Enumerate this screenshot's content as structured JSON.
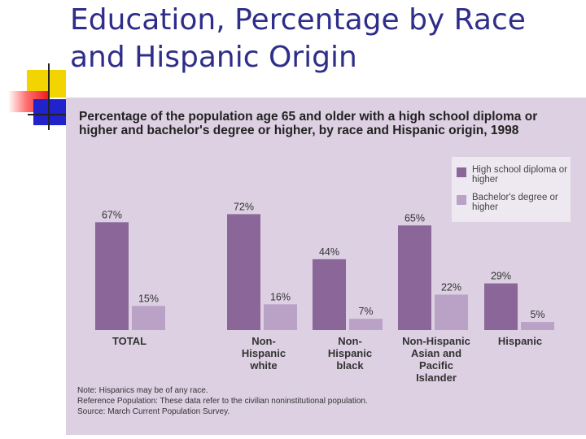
{
  "slide": {
    "title": "Education, Percentage by Race and Hispanic Origin"
  },
  "colors": {
    "title": "#2e2e8a",
    "panel_background": "#dcd0e2",
    "high_school": "#8a6699",
    "bachelors": "#b9a2c6"
  },
  "chart_data": {
    "type": "bar",
    "title": "Percentage of the population age 65 and older with a high school diploma or higher and bachelor's degree or higher, by race and Hispanic origin, 1998",
    "categories": [
      "TOTAL",
      "Non-Hispanic white",
      "Non-Hispanic black",
      "Non-Hispanic Asian and Pacific Islander",
      "Hispanic"
    ],
    "category_lines": [
      [
        "TOTAL"
      ],
      [
        "Non-",
        "Hispanic",
        "white"
      ],
      [
        "Non-",
        "Hispanic",
        "black"
      ],
      [
        "Non-Hispanic",
        "Asian and",
        "Pacific",
        "Islander"
      ],
      [
        "Hispanic"
      ]
    ],
    "series": [
      {
        "name": "High school diploma or higher",
        "values": [
          67,
          72,
          44,
          65,
          29
        ],
        "labels": [
          "67%",
          "72%",
          "44%",
          "65%",
          "29%"
        ],
        "color": "#8a6699"
      },
      {
        "name": "Bachelor's degree or higher",
        "values": [
          15,
          16,
          7,
          22,
          5
        ],
        "labels": [
          "15%",
          "16%",
          "7%",
          "22%",
          "5%"
        ],
        "color": "#b9a2c6"
      }
    ],
    "ylim": [
      0,
      100
    ],
    "grid": false,
    "legend_position": "top-right",
    "notes": [
      "Note: Hispanics may be of any race.",
      "Reference Population: These data refer to the civilian noninstitutional population.",
      "Source: March Current Population Survey."
    ]
  }
}
